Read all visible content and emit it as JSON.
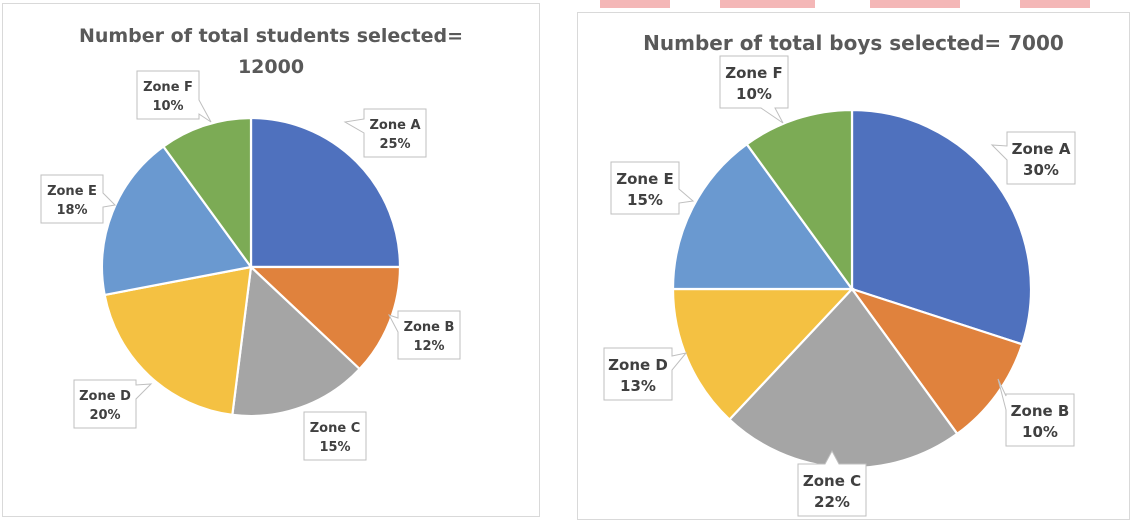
{
  "chart_data": [
    {
      "type": "pie",
      "title_line1": "Number of total students selected=",
      "title_line2": "12000",
      "series": [
        {
          "name": "Zone A",
          "label": "25%",
          "value": 25,
          "color": "#4f71be"
        },
        {
          "name": "Zone B",
          "label": "12%",
          "value": 12,
          "color": "#e0823d"
        },
        {
          "name": "Zone C",
          "label": "15%",
          "value": 15,
          "color": "#a5a5a5"
        },
        {
          "name": "Zone D",
          "label": "20%",
          "value": 20,
          "color": "#f4c142"
        },
        {
          "name": "Zone E",
          "label": "18%",
          "value": 18,
          "color": "#6a99d0"
        },
        {
          "name": "Zone F",
          "label": "10%",
          "value": 10,
          "color": "#7cab55"
        }
      ]
    },
    {
      "type": "pie",
      "title_line1": "Number of total boys selected= 7000",
      "series": [
        {
          "name": "Zone A",
          "label": "30%",
          "value": 30,
          "color": "#4f71be"
        },
        {
          "name": "Zone B",
          "label": "10%",
          "value": 10,
          "color": "#e0823d"
        },
        {
          "name": "Zone C",
          "label": "22%",
          "value": 22,
          "color": "#a5a5a5"
        },
        {
          "name": "Zone D",
          "label": "13%",
          "value": 13,
          "color": "#f4c142"
        },
        {
          "name": "Zone E",
          "label": "15%",
          "value": 15,
          "color": "#6a99d0"
        },
        {
          "name": "Zone F",
          "label": "10%",
          "value": 10,
          "color": "#7cab55"
        }
      ]
    }
  ]
}
